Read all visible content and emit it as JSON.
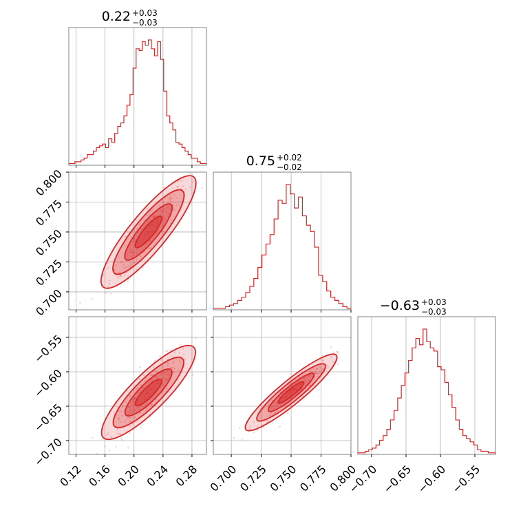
{
  "chart_data": {
    "type": "corner",
    "color": "#d62728",
    "parameters": [
      {
        "index": 0,
        "title_main": "0.22",
        "title_plus": "+0.03",
        "title_minus": "−0.03",
        "range": [
          0.11,
          0.3
        ],
        "ticks": [
          0.12,
          0.16,
          0.2,
          0.24,
          0.28
        ],
        "tick_labels": [
          "0.12",
          "0.16",
          "0.20",
          "0.24",
          "0.28"
        ],
        "hist_counts": [
          1,
          1,
          2,
          2,
          3,
          4,
          6,
          6,
          8,
          10,
          11,
          12,
          10,
          15,
          13,
          18,
          22,
          24,
          28,
          34,
          40,
          55,
          66,
          65,
          70,
          68,
          71,
          66,
          62,
          70,
          60,
          42,
          28,
          24,
          20,
          13,
          12,
          10,
          8,
          6,
          4,
          4,
          2,
          1,
          1
        ]
      },
      {
        "index": 1,
        "title_main": "0.75",
        "title_plus": "+0.02",
        "title_minus": "−0.02",
        "range": [
          0.685,
          0.8
        ],
        "ticks": [
          0.7,
          0.725,
          0.75,
          0.775,
          0.8
        ],
        "tick_labels": [
          "0.700",
          "0.725",
          "0.750",
          "0.775",
          "0.800"
        ],
        "hist_counts": [
          1,
          1,
          1,
          2,
          3,
          4,
          6,
          8,
          11,
          15,
          20,
          27,
          35,
          42,
          48,
          58,
          70,
          68,
          80,
          74,
          65,
          72,
          60,
          54,
          50,
          40,
          22,
          18,
          12,
          8,
          6,
          4,
          2,
          1
        ]
      },
      {
        "index": 2,
        "title_main": "−0.63",
        "title_plus": "+0.03",
        "title_minus": "−0.03",
        "range": [
          -0.72,
          -0.52
        ],
        "ticks": [
          -0.7,
          -0.65,
          -0.6,
          -0.55
        ],
        "tick_labels": [
          "−0.70",
          "−0.65",
          "−0.60",
          "−0.55"
        ],
        "hist_counts": [
          1,
          1,
          2,
          3,
          4,
          6,
          9,
          12,
          16,
          22,
          28,
          36,
          44,
          52,
          60,
          68,
          74,
          70,
          80,
          72,
          68,
          66,
          56,
          54,
          46,
          38,
          30,
          22,
          16,
          12,
          10,
          8,
          6,
          3,
          2,
          2,
          1,
          1
        ]
      }
    ],
    "pairs": [
      {
        "x": 0,
        "y": 1,
        "slope": 0.7368,
        "intercept": 0.5879,
        "spread": 0.006
      },
      {
        "x": 0,
        "y": 2,
        "slope": 1.0526,
        "intercept": -0.8616,
        "spread": 0.01
      },
      {
        "x": 1,
        "y": 2,
        "slope": 1.4286,
        "intercept": -1.7014,
        "spread": 0.006
      }
    ],
    "grid": true,
    "show_titles": true
  }
}
